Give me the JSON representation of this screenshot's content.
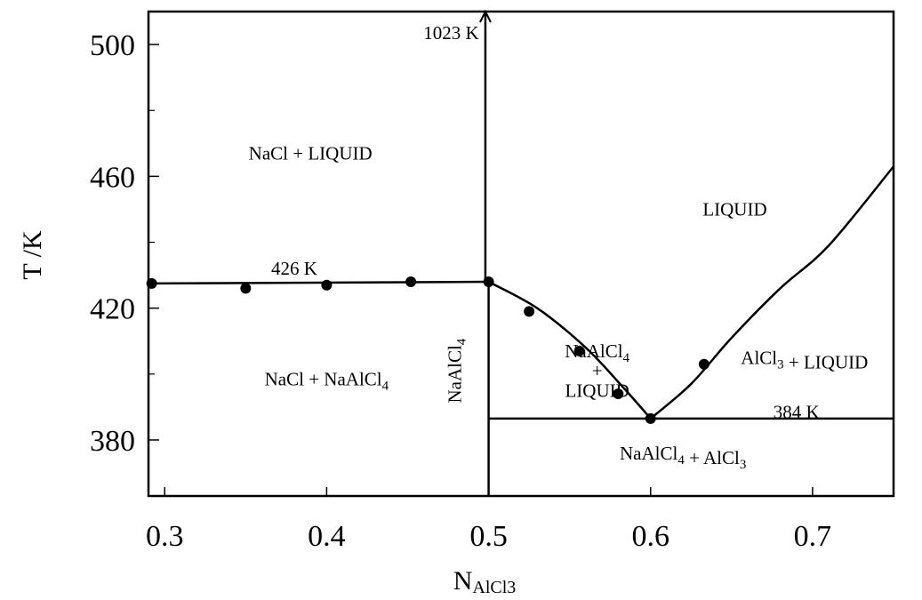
{
  "chart_data": {
    "type": "line",
    "xlabel_main": "N",
    "xlabel_sub": "AlCl3",
    "ylabel": "T /K",
    "xlim": [
      0.29,
      0.75
    ],
    "ylim": [
      363,
      510
    ],
    "x_ticks": [
      "0.3",
      "0.4",
      "0.5",
      "0.6",
      "0.7"
    ],
    "x_tick_values": [
      0.3,
      0.4,
      0.5,
      0.6,
      0.7
    ],
    "y_ticks": [
      "380",
      "420",
      "460",
      "500"
    ],
    "y_tick_values": [
      380,
      420,
      460,
      500
    ],
    "y_minor_tick_values": [
      400,
      440,
      480
    ],
    "grid": false,
    "series": [
      {
        "values": [
          {
            "x": 0.29,
            "y": 427.5
          },
          {
            "x": 0.5,
            "y": 428
          }
        ]
      },
      {
        "values": [
          {
            "x": 0.5,
            "y": 428
          },
          {
            "x": 0.53,
            "y": 420
          },
          {
            "x": 0.56,
            "y": 408
          },
          {
            "x": 0.583,
            "y": 396
          },
          {
            "x": 0.6,
            "y": 386.5
          }
        ]
      },
      {
        "values": [
          {
            "x": 0.6,
            "y": 386.5
          },
          {
            "x": 0.625,
            "y": 397
          },
          {
            "x": 0.65,
            "y": 411
          },
          {
            "x": 0.68,
            "y": 426
          },
          {
            "x": 0.71,
            "y": 439
          },
          {
            "x": 0.75,
            "y": 463
          }
        ]
      },
      {
        "values": [
          {
            "x": 0.5,
            "y": 386.5
          },
          {
            "x": 0.75,
            "y": 386.5
          }
        ]
      },
      {
        "values": [
          {
            "x": 0.5,
            "y": 363
          },
          {
            "x": 0.5,
            "y": 428
          }
        ]
      },
      {
        "values": [
          {
            "x": 0.498,
            "y": 428
          },
          {
            "x": 0.498,
            "y": 510
          }
        ]
      }
    ],
    "points": [
      {
        "x": 0.292,
        "y": 427.5
      },
      {
        "x": 0.35,
        "y": 426
      },
      {
        "x": 0.4,
        "y": 427
      },
      {
        "x": 0.452,
        "y": 428
      },
      {
        "x": 0.5,
        "y": 428
      },
      {
        "x": 0.525,
        "y": 419
      },
      {
        "x": 0.556,
        "y": 407
      },
      {
        "x": 0.58,
        "y": 394
      },
      {
        "x": 0.6,
        "y": 386.5
      },
      {
        "x": 0.633,
        "y": 403
      }
    ],
    "annotations": [
      {
        "text": "1023 K",
        "x": 0.494,
        "y": 503.5
      },
      {
        "text": "426 K",
        "x": 0.38,
        "y": 432
      },
      {
        "text": "384 K",
        "x": 0.69,
        "y": 388.5
      },
      {
        "text": "NaCl + LIQUID",
        "x": 0.39,
        "y": 467
      },
      {
        "text": "LIQUID",
        "x": 0.652,
        "y": 450
      },
      {
        "text": "NaCl + NaAlCl4",
        "x": 0.4,
        "y": 398.5
      },
      {
        "text": "NaAlCl4",
        "x": 0.567,
        "y": 407
      },
      {
        "text": "+",
        "x": 0.567,
        "y": 401
      },
      {
        "text": "LIQUID",
        "x": 0.567,
        "y": 395
      },
      {
        "text": "AlCl3 + LIQUID",
        "x": 0.695,
        "y": 405
      },
      {
        "text": "NaAlCl4 + AlCl3",
        "x": 0.62,
        "y": 376
      },
      {
        "text": "NaAlCl4",
        "x": 0.49,
        "y": 401
      }
    ]
  }
}
